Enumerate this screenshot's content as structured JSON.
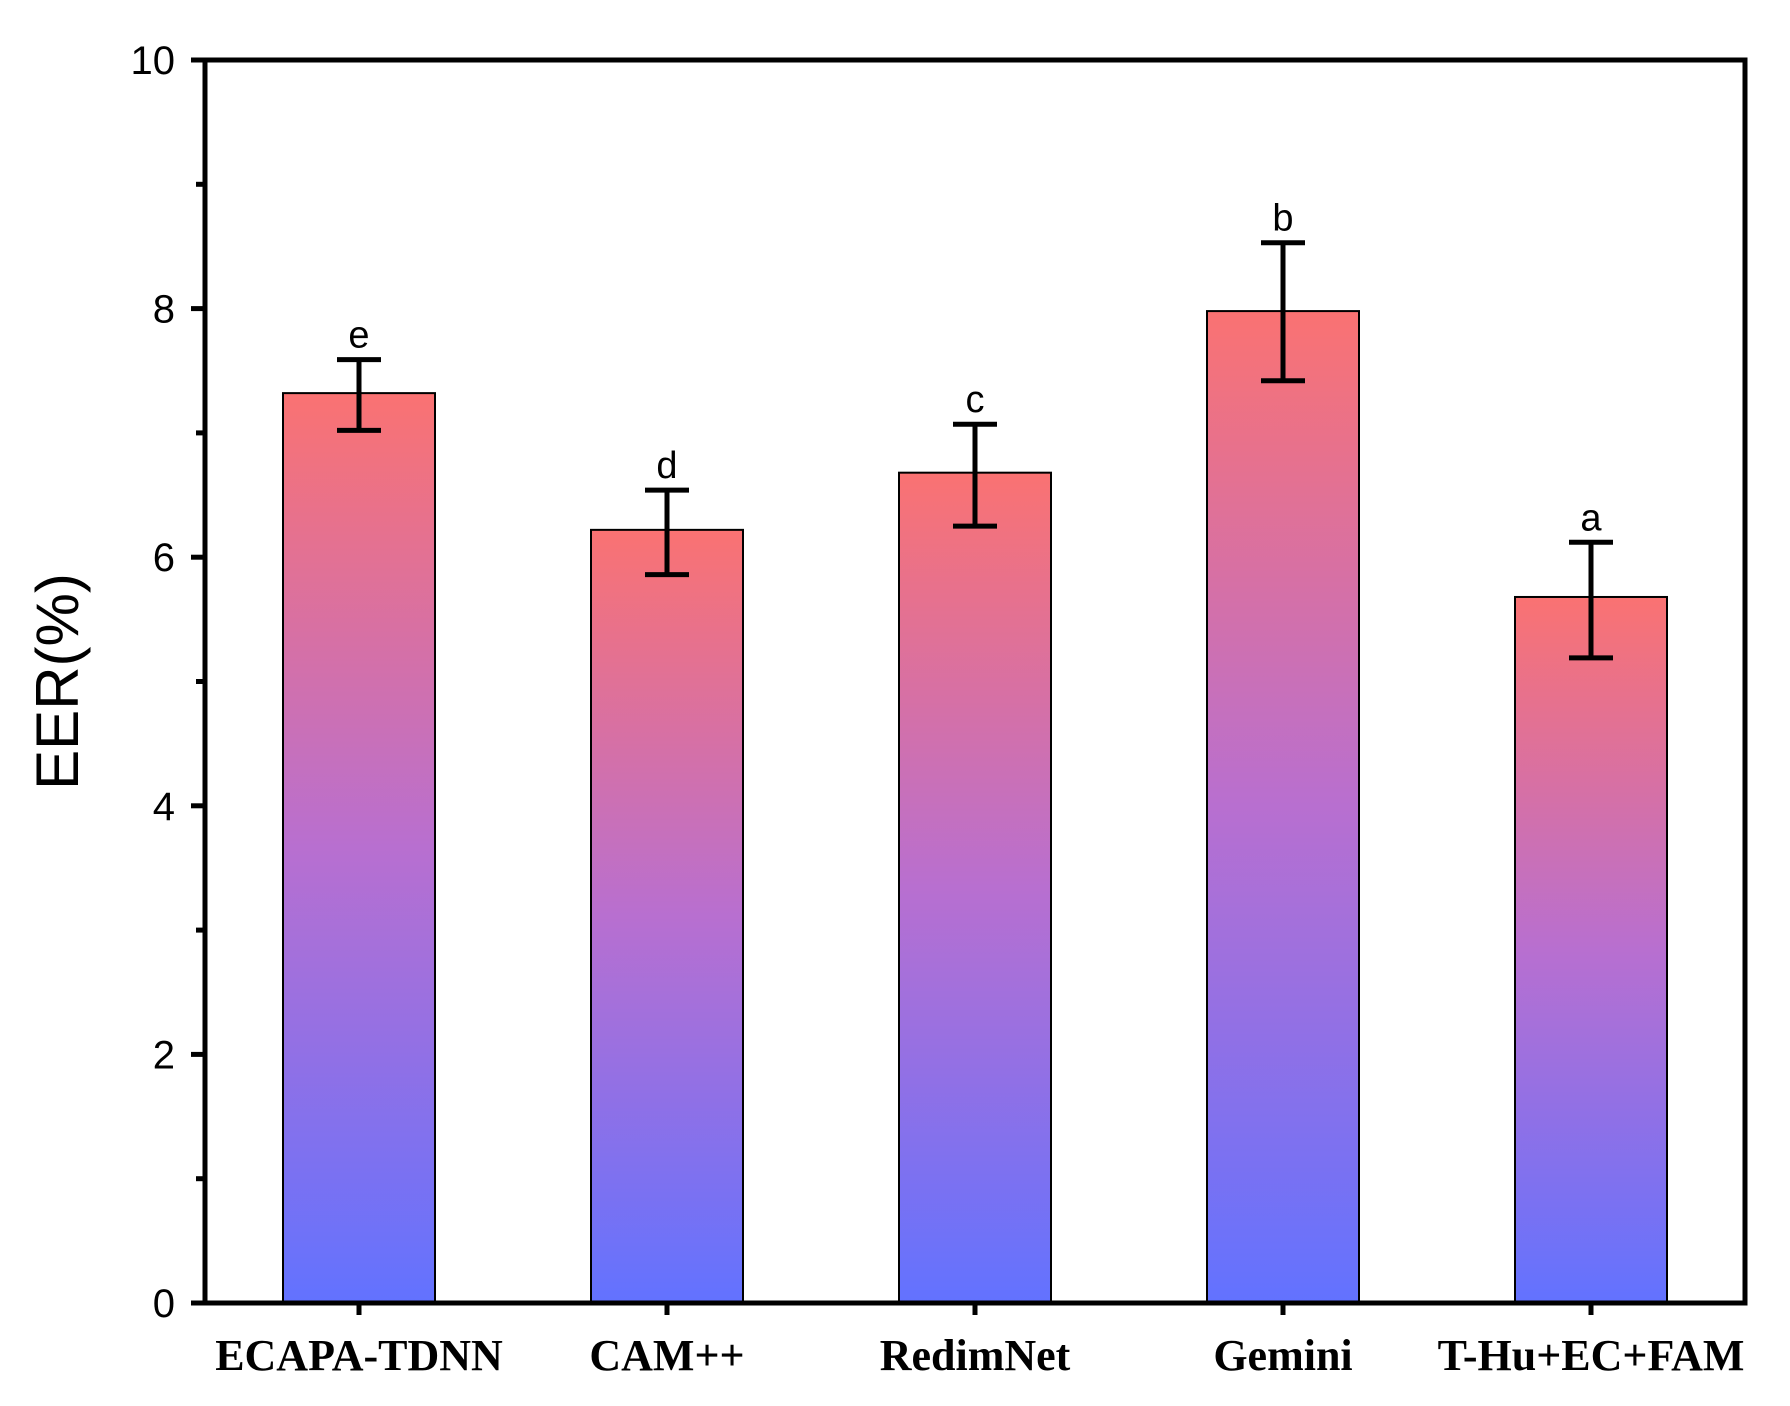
{
  "chart_data": {
    "type": "bar",
    "title": "",
    "xlabel": "",
    "ylabel": "EER(%)",
    "ylim": [
      0,
      10
    ],
    "yticks": [
      0,
      2,
      4,
      6,
      8,
      10
    ],
    "grid": false,
    "categories": [
      "ECAPA-TDNN",
      "CAM++",
      "RedimNet",
      "Gemini",
      "T-Hu+EC+FAM"
    ],
    "values": [
      7.32,
      6.22,
      6.68,
      7.98,
      5.68
    ],
    "error_low": [
      7.02,
      5.86,
      6.25,
      7.42,
      5.19
    ],
    "error_high": [
      7.59,
      6.54,
      7.07,
      8.53,
      6.12
    ],
    "significance_labels": [
      "e",
      "d",
      "c",
      "b",
      "a"
    ],
    "colors": {
      "bar_top": "#fa7272",
      "bar_mid": "#b86fd0",
      "bar_bottom": "#6272ff",
      "axis": "#000000"
    }
  }
}
